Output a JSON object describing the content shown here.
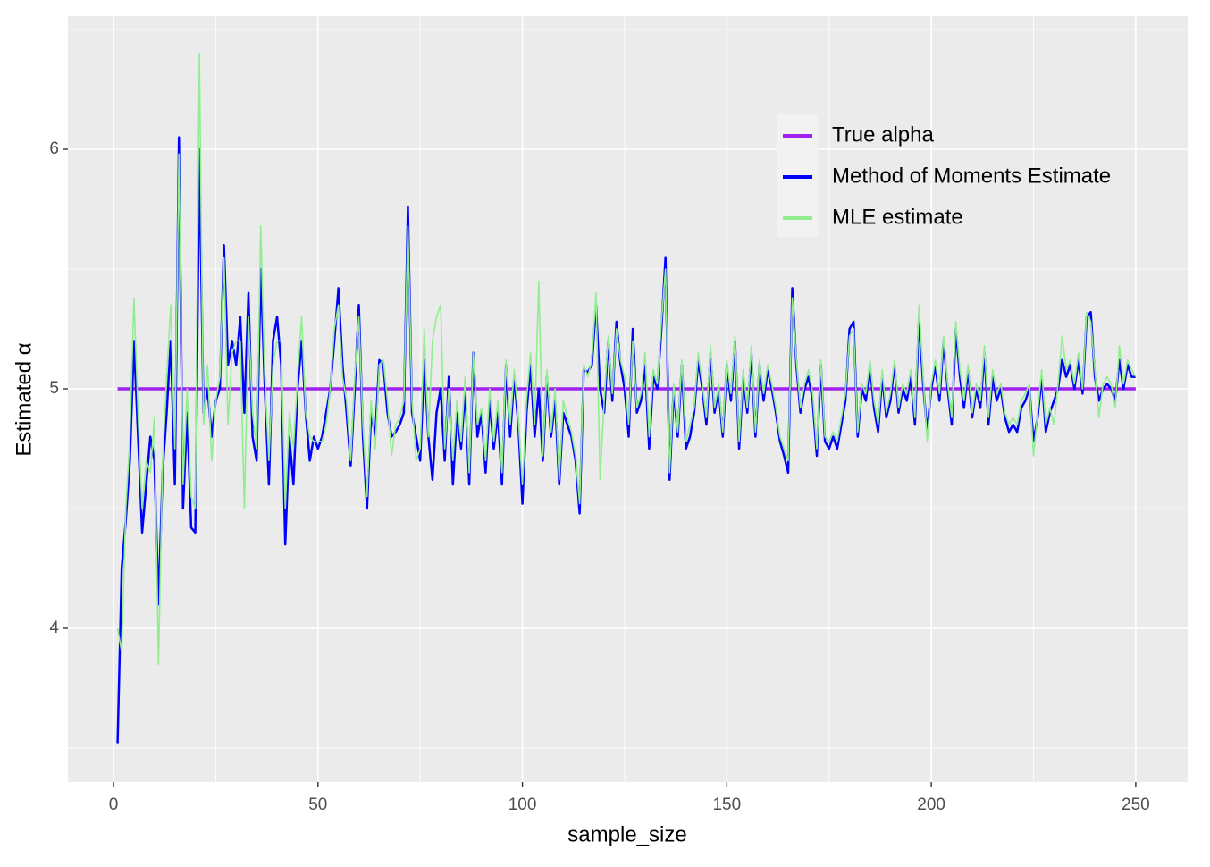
{
  "chart_data": {
    "type": "line",
    "xlabel": "sample_size",
    "ylabel": "Estimated α",
    "xlim": [
      -11.15,
      262.7
    ],
    "ylim": [
      3.358,
      6.556
    ],
    "xticks": [
      0,
      50,
      100,
      150,
      200,
      250
    ],
    "yticks": [
      4,
      5,
      6
    ],
    "xminor_ticks": [
      25,
      75,
      125,
      175,
      225
    ],
    "yminor_ticks": [
      3.5,
      4.5,
      5.5,
      6.5
    ],
    "grid": true,
    "legend": "top-right",
    "x": [
      1,
      2,
      3,
      4,
      5,
      6,
      7,
      8,
      9,
      10,
      11,
      12,
      13,
      14,
      15,
      16,
      17,
      18,
      19,
      20,
      21,
      22,
      23,
      24,
      25,
      26,
      27,
      28,
      29,
      30,
      31,
      32,
      33,
      34,
      35,
      36,
      37,
      38,
      39,
      40,
      41,
      42,
      43,
      44,
      45,
      46,
      47,
      48,
      49,
      50,
      51,
      52,
      53,
      54,
      55,
      56,
      57,
      58,
      59,
      60,
      61,
      62,
      63,
      64,
      65,
      66,
      67,
      68,
      69,
      70,
      71,
      72,
      73,
      74,
      75,
      76,
      77,
      78,
      79,
      80,
      81,
      82,
      83,
      84,
      85,
      86,
      87,
      88,
      89,
      90,
      91,
      92,
      93,
      94,
      95,
      96,
      97,
      98,
      99,
      100,
      101,
      102,
      103,
      104,
      105,
      106,
      107,
      108,
      109,
      110,
      111,
      112,
      113,
      114,
      115,
      116,
      117,
      118,
      119,
      120,
      121,
      122,
      123,
      124,
      125,
      126,
      127,
      128,
      129,
      130,
      131,
      132,
      133,
      134,
      135,
      136,
      137,
      138,
      139,
      140,
      141,
      142,
      143,
      144,
      145,
      146,
      147,
      148,
      149,
      150,
      151,
      152,
      153,
      154,
      155,
      156,
      157,
      158,
      159,
      160,
      161,
      162,
      163,
      164,
      165,
      166,
      167,
      168,
      169,
      170,
      171,
      172,
      173,
      174,
      175,
      176,
      177,
      178,
      179,
      180,
      181,
      182,
      183,
      184,
      185,
      186,
      187,
      188,
      189,
      190,
      191,
      192,
      193,
      194,
      195,
      196,
      197,
      198,
      199,
      200,
      201,
      202,
      203,
      204,
      205,
      206,
      207,
      208,
      209,
      210,
      211,
      212,
      213,
      214,
      215,
      216,
      217,
      218,
      219,
      220,
      221,
      222,
      223,
      224,
      225,
      226,
      227,
      228,
      229,
      230,
      231,
      232,
      233,
      234,
      235,
      236,
      237,
      238,
      239,
      240,
      241,
      242,
      243,
      244,
      245,
      246,
      247,
      248,
      249,
      250
    ],
    "series": [
      {
        "name": "True alpha",
        "color": "#a020f0",
        "x": [
          1,
          250
        ],
        "values": [
          5,
          5
        ]
      },
      {
        "name": "Method of Moments Estimate",
        "color": "#0000ff",
        "values": [
          3.52,
          4.25,
          4.45,
          4.7,
          5.2,
          4.8,
          4.4,
          4.6,
          4.8,
          4.7,
          4.1,
          4.65,
          4.9,
          5.2,
          4.6,
          6.05,
          4.5,
          4.9,
          4.42,
          4.4,
          6.0,
          4.9,
          5.0,
          4.8,
          4.95,
          5.0,
          5.6,
          5.1,
          5.2,
          5.1,
          5.3,
          4.9,
          5.4,
          4.8,
          4.7,
          5.5,
          5.0,
          4.6,
          5.2,
          5.3,
          5.1,
          4.35,
          4.8,
          4.6,
          5.0,
          5.2,
          4.9,
          4.7,
          4.8,
          4.75,
          4.8,
          4.9,
          5.0,
          5.2,
          5.42,
          5.1,
          4.9,
          4.68,
          5.0,
          5.35,
          4.8,
          4.5,
          4.9,
          4.8,
          5.12,
          5.1,
          4.9,
          4.8,
          4.82,
          4.85,
          4.9,
          5.76,
          4.9,
          4.8,
          4.7,
          5.12,
          4.8,
          4.62,
          4.9,
          5.0,
          4.7,
          5.05,
          4.6,
          4.9,
          4.75,
          5.0,
          4.6,
          5.15,
          4.8,
          4.9,
          4.65,
          4.95,
          4.75,
          4.9,
          4.6,
          5.1,
          4.8,
          5.05,
          4.85,
          4.52,
          4.9,
          5.1,
          4.8,
          5.0,
          4.7,
          5.05,
          4.8,
          4.95,
          4.6,
          4.9,
          4.85,
          4.8,
          4.7,
          4.48,
          5.08,
          5.07,
          5.1,
          5.35,
          5.0,
          4.9,
          5.2,
          4.95,
          5.28,
          5.1,
          5.0,
          4.8,
          5.25,
          4.9,
          4.95,
          5.1,
          4.75,
          5.05,
          5.0,
          5.25,
          5.55,
          4.62,
          5.0,
          4.8,
          5.1,
          4.75,
          4.8,
          4.9,
          5.12,
          5.0,
          4.85,
          5.15,
          4.9,
          5.0,
          4.8,
          5.1,
          4.95,
          5.2,
          4.75,
          5.05,
          4.9,
          5.15,
          4.8,
          5.1,
          4.95,
          5.08,
          5.0,
          4.9,
          4.78,
          4.72,
          4.65,
          5.42,
          5.1,
          4.9,
          5.0,
          5.05,
          4.95,
          4.72,
          5.1,
          4.78,
          4.75,
          4.8,
          4.75,
          4.85,
          4.95,
          5.25,
          5.28,
          4.8,
          5.0,
          4.95,
          5.1,
          4.92,
          4.82,
          5.05,
          4.88,
          4.95,
          5.1,
          4.9,
          5.0,
          4.95,
          5.05,
          4.85,
          5.3,
          5.02,
          4.82,
          5.0,
          5.1,
          4.95,
          5.2,
          5.0,
          4.85,
          5.25,
          5.05,
          4.92,
          5.08,
          4.88,
          5.0,
          4.92,
          5.15,
          4.85,
          5.05,
          4.95,
          5.0,
          4.88,
          4.82,
          4.85,
          4.82,
          4.92,
          4.95,
          5.0,
          4.78,
          4.88,
          5.05,
          4.82,
          4.9,
          4.95,
          5.0,
          5.12,
          5.05,
          5.1,
          5.0,
          5.12,
          4.98,
          5.3,
          5.32,
          5.05,
          4.95,
          5.0,
          5.02,
          5.0,
          4.95,
          5.12,
          5.0,
          5.1,
          5.05,
          5.05
        ]
      },
      {
        "name": "MLE estimate",
        "color": "#90ee90",
        "values": [
          4.0,
          3.9,
          4.5,
          4.8,
          5.38,
          4.9,
          4.5,
          4.7,
          4.65,
          4.88,
          3.85,
          4.7,
          5.05,
          5.35,
          4.75,
          5.98,
          4.6,
          5.0,
          4.55,
          4.5,
          6.4,
          4.85,
          5.1,
          4.7,
          4.95,
          5.05,
          5.55,
          4.85,
          5.15,
          5.2,
          5.2,
          4.5,
          5.3,
          4.9,
          4.75,
          5.68,
          5.05,
          4.7,
          5.1,
          5.2,
          5.2,
          4.5,
          4.9,
          4.75,
          5.05,
          5.3,
          4.9,
          4.8,
          4.78,
          4.78,
          4.78,
          4.85,
          5.0,
          5.25,
          5.35,
          5.05,
          4.95,
          4.7,
          5.05,
          5.3,
          4.85,
          4.55,
          4.95,
          4.75,
          5.1,
          5.12,
          4.95,
          4.72,
          4.85,
          4.88,
          4.95,
          5.68,
          4.95,
          4.7,
          4.75,
          5.25,
          4.8,
          5.2,
          5.3,
          5.35,
          4.75,
          5.0,
          4.7,
          4.95,
          4.78,
          5.05,
          4.65,
          5.15,
          4.85,
          4.92,
          4.7,
          5.0,
          4.78,
          4.95,
          4.65,
          5.12,
          4.85,
          5.08,
          4.88,
          4.6,
          4.95,
          5.15,
          4.85,
          5.45,
          4.72,
          5.08,
          4.82,
          5.0,
          4.62,
          4.95,
          4.88,
          4.82,
          4.72,
          4.52,
          5.1,
          5.05,
          5.12,
          5.4,
          4.62,
          4.95,
          5.22,
          4.98,
          5.25,
          5.12,
          5.05,
          4.85,
          5.2,
          4.92,
          4.98,
          5.15,
          4.8,
          5.08,
          5.02,
          5.28,
          5.5,
          4.65,
          5.02,
          4.82,
          5.12,
          4.78,
          4.85,
          4.92,
          5.15,
          5.02,
          4.88,
          5.18,
          4.92,
          5.02,
          4.82,
          5.12,
          4.98,
          5.22,
          4.78,
          5.08,
          4.92,
          5.18,
          4.82,
          5.12,
          4.98,
          5.1,
          5.02,
          4.92,
          4.8,
          4.75,
          4.7,
          5.38,
          5.12,
          4.92,
          5.02,
          5.08,
          4.98,
          4.75,
          5.12,
          4.8,
          4.78,
          4.82,
          4.78,
          4.88,
          4.98,
          5.22,
          5.25,
          4.82,
          5.02,
          4.98,
          5.12,
          4.95,
          4.85,
          5.08,
          4.9,
          4.98,
          5.12,
          4.92,
          5.02,
          4.98,
          5.08,
          4.88,
          5.35,
          5.05,
          4.78,
          5.02,
          5.12,
          4.98,
          5.22,
          5.02,
          4.88,
          5.28,
          5.08,
          4.95,
          5.1,
          4.9,
          5.02,
          4.95,
          5.18,
          4.88,
          5.08,
          4.98,
          5.02,
          4.9,
          4.85,
          4.88,
          4.85,
          4.95,
          4.98,
          5.02,
          4.72,
          4.9,
          5.08,
          4.85,
          4.92,
          4.85,
          5.02,
          5.22,
          5.08,
          5.12,
          5.02,
          5.15,
          5.0,
          5.32,
          5.28,
          5.08,
          4.88,
          5.02,
          5.05,
          5.02,
          4.92,
          5.18,
          5.02,
          5.12,
          5.08,
          5.05
        ]
      }
    ]
  }
}
